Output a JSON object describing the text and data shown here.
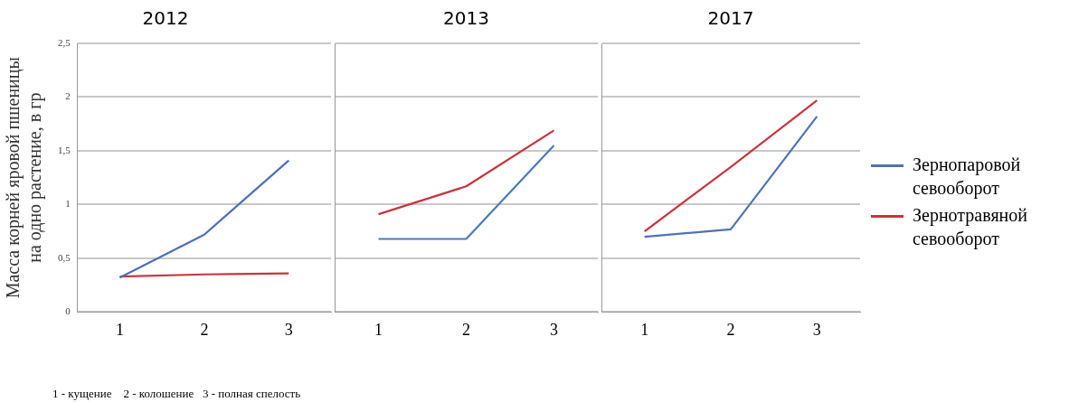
{
  "chart_data": [
    {
      "type": "line",
      "title": "2012",
      "ylabel": "Масса корней яровой пшеницы на одно растение, в гр",
      "categories": [
        "1",
        "2",
        "3"
      ],
      "ylim": [
        0,
        2.5
      ],
      "yticks": [
        0,
        {
          "value": 0.5,
          "label": "0,5"
        },
        1,
        {
          "value": 1.5,
          "label": "1,5"
        },
        2,
        {
          "value": 2.5,
          "label": "2,5"
        }
      ],
      "grid": "y",
      "marker": "none",
      "annotations": [
        "1 - кущение    2 - колошение   3 - полная спелость"
      ],
      "series": [
        {
          "color": "#4f6fb8",
          "values": [
            0.32,
            0.72,
            1.41
          ]
        },
        {
          "color": "#c8343f",
          "values": [
            0.33,
            0.35,
            0.36
          ]
        }
      ]
    },
    {
      "type": "line",
      "title": "2013",
      "categories": [
        "1",
        "2",
        "3"
      ],
      "ylim": [
        0,
        2.5
      ],
      "yticks": [
        0,
        0.5,
        1,
        1.5,
        2,
        2.5
      ],
      "grid": "y",
      "marker": "none",
      "tick_labels": "x",
      "series": [
        {
          "color": "#4a7cb5",
          "values": [
            0.68,
            0.68,
            1.55
          ]
        },
        {
          "color": "#c8343f",
          "values": [
            0.91,
            1.17,
            1.69
          ]
        }
      ]
    },
    {
      "type": "line",
      "title": "2017",
      "categories": [
        "1",
        "2",
        "3"
      ],
      "ylim": [
        0,
        2.5
      ],
      "yticks": [
        0,
        0.5,
        1,
        1.5,
        2,
        2.5
      ],
      "grid": "y",
      "marker": "none",
      "tick_labels": "x",
      "legend": "right",
      "series": [
        {
          "name": "Зернопаровой севооборот",
          "color": "#4f72b5",
          "values": [
            0.7,
            0.77,
            1.82
          ]
        },
        {
          "name": "Зернотравяной севооборот",
          "color": "#c8343f",
          "values": [
            0.75,
            1.35,
            1.97
          ]
        }
      ]
    }
  ]
}
